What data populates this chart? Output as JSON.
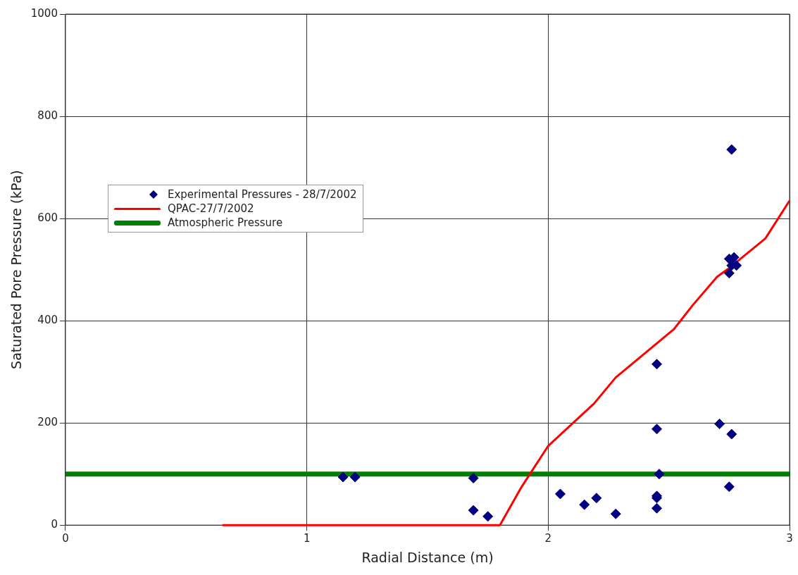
{
  "chart_data": {
    "type": "scatter",
    "xlabel": "Radial Distance (m)",
    "ylabel": "Saturated Pore Pressure (kPa)",
    "xlim": [
      0,
      3
    ],
    "xticks": [
      0,
      1,
      2,
      3
    ],
    "ylim": [
      0,
      1000
    ],
    "yticks": [
      0,
      200,
      400,
      600,
      800,
      1000
    ],
    "grid": true,
    "legend": "left",
    "marker": "diamond",
    "series": [
      {
        "name": "Experimental Pressures - 28/7/2002",
        "type": "scatter",
        "color": "#000080",
        "x": [
          1.15,
          1.2,
          1.69,
          1.69,
          1.75,
          2.05,
          2.15,
          2.2,
          2.28,
          2.45,
          2.45,
          2.46,
          2.45,
          2.45,
          2.45,
          2.71,
          2.76,
          2.75,
          2.76,
          2.75,
          2.77,
          2.76,
          2.78,
          2.75
        ],
        "values": [
          94,
          94,
          92,
          29,
          17,
          61,
          40,
          53,
          22,
          315,
          188,
          100,
          57,
          53,
          33,
          198,
          178,
          75,
          735,
          521,
          524,
          508,
          508,
          493
        ]
      },
      {
        "name": "QPAC-27/7/2002",
        "type": "line",
        "color": "#ff0000",
        "marker": "none",
        "x": [
          0.65,
          1.8,
          1.89,
          2.0,
          2.19,
          2.28,
          2.52,
          2.6,
          2.7,
          2.75,
          2.9,
          3.0
        ],
        "values": [
          0,
          0,
          75,
          155,
          238,
          289,
          383,
          431,
          486,
          503,
          561,
          635
        ]
      },
      {
        "name": "Atmospheric Pressure",
        "type": "line",
        "color": "#008000",
        "marker": "none",
        "x": [
          0,
          3
        ],
        "values": [
          100,
          100
        ]
      }
    ]
  }
}
